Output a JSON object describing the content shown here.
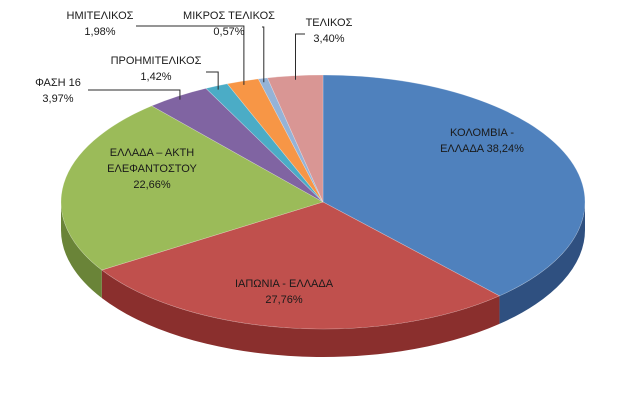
{
  "chart_data": {
    "type": "pie",
    "title": "",
    "slices": [
      {
        "label": "ΚΟΛΟΜΒΙΑ - ΕΛΛΑΔΑ",
        "value": 38.24,
        "value_label": "38,24%",
        "color": "#4f81bd",
        "side_color": "#2f5080"
      },
      {
        "label": "ΙΑΠΩΝΙΑ - ΕΛΛΑΔΑ",
        "value": 27.76,
        "value_label": "27,76%",
        "color": "#c0504d",
        "side_color": "#8a2f2d"
      },
      {
        "label": "ΕΛΛΑΔΑ – ΑΚΤΗ ΕΛΕΦΑΝΤΟΣΤΟΥ",
        "value": 22.66,
        "value_label": "22,66%",
        "color": "#9bbb59",
        "side_color": "#6a8438"
      },
      {
        "label": "ΦΑΣΗ 16",
        "value": 3.97,
        "value_label": "3,97%",
        "color": "#8064a2",
        "side_color": "#56417a"
      },
      {
        "label": "ΠΡΟΗΜΙΤΕΛΙΚΟΣ",
        "value": 1.42,
        "value_label": "1,42%",
        "color": "#4bacc6",
        "side_color": "#2d7a90"
      },
      {
        "label": "ΗΜΙΤΕΛΙΚΟΣ",
        "value": 1.98,
        "value_label": "1,98%",
        "color": "#f79646",
        "side_color": "#b86a26"
      },
      {
        "label": "ΜΙΚΡΟΣ ΤΕΛΙΚΟΣ",
        "value": 0.57,
        "value_label": "0,57%",
        "color": "#95b3d7",
        "side_color": "#6a88ae"
      },
      {
        "label": "ΤΕΛΙΚΟΣ",
        "value": 3.4,
        "value_label": "3,40%",
        "color": "#d99694",
        "side_color": "#a86866"
      }
    ],
    "legend": "none"
  },
  "labels": {
    "kolombia_line1": "ΚΟΛΟΜΒΙΑ -",
    "kolombia_line2": "ΕΛΛΑΔΑ 38,24%",
    "iaponia_line1": "ΙΑΠΩΝΙΑ - ΕΛΛΑΔΑ",
    "iaponia_line2": "27,76%",
    "ellada_line1": "ΕΛΛΑΔΑ – ΑΚΤΗ",
    "ellada_line2": "ΕΛΕΦΑΝΤΟΣΤΟΥ",
    "ellada_line3": "22,66%",
    "fasi_line1": "ΦΑΣΗ 16",
    "fasi_line2": "3,97%",
    "proimitelikos_line1": "ΠΡΟΗΜΙΤΕΛΙΚΟΣ",
    "proimitelikos_line2": "1,42%",
    "imitelikos_line1": "ΗΜΙΤΕΛΙΚΟΣ",
    "imitelikos_line2": "1,98%",
    "mikros_line1": "ΜΙΚΡΟΣ ΤΕΛΙΚΟΣ",
    "mikros_line2": "0,57%",
    "telikos_line1": "ΤΕΛΙΚΟΣ",
    "telikos_line2": "3,40%"
  }
}
